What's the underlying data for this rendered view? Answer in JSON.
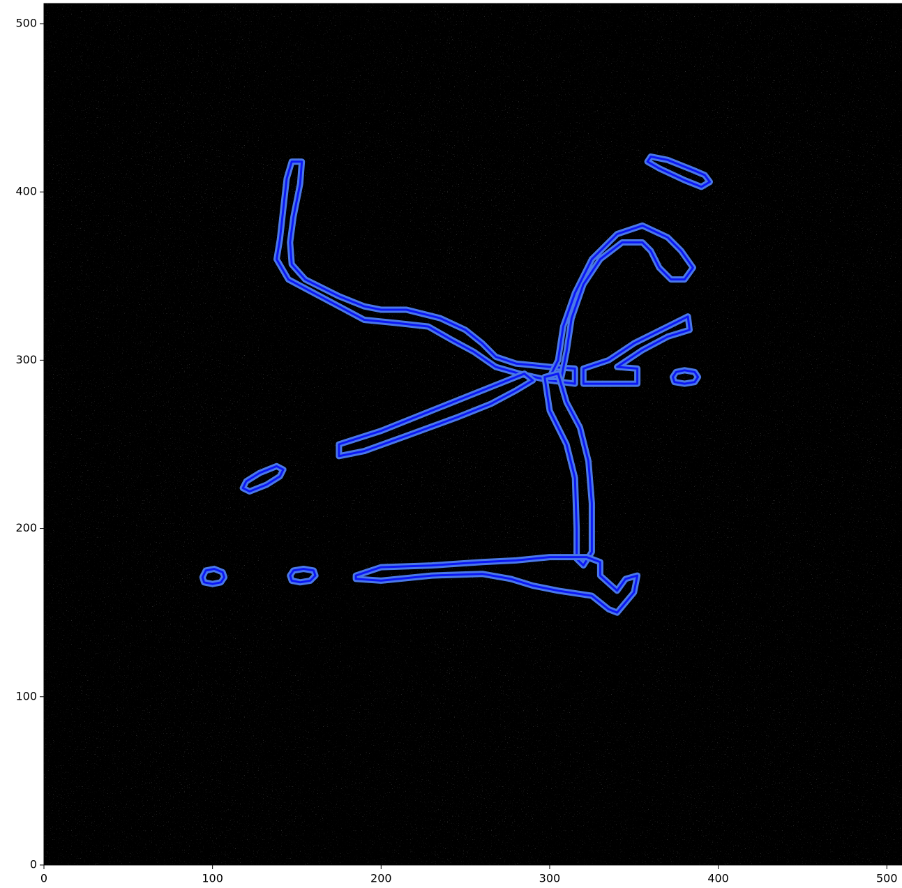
{
  "chart_data": {
    "type": "contour",
    "xlim": [
      0,
      509
    ],
    "ylim": [
      0,
      512
    ],
    "xticks": [
      0,
      100,
      200,
      300,
      400,
      500
    ],
    "yticks": [
      0,
      100,
      200,
      300,
      400,
      500
    ],
    "background": "#000000",
    "halo_color": "#4a78e8",
    "color": "#0b17f5",
    "contours": [
      {
        "x": [
          147,
          153,
          152,
          148,
          146,
          147,
          155,
          175,
          190,
          200,
          215,
          235,
          250,
          260,
          268,
          280,
          300,
          315,
          315,
          300,
          282,
          268,
          255,
          242,
          228,
          210,
          190,
          175,
          160,
          145,
          138,
          140,
          142,
          144
        ],
        "y": [
          418,
          418,
          405,
          385,
          370,
          357,
          348,
          338,
          332,
          330,
          330,
          325,
          318,
          310,
          302,
          298,
          296,
          295,
          286,
          288,
          292,
          296,
          305,
          312,
          320,
          322,
          324,
          332,
          340,
          348,
          360,
          372,
          390,
          408
        ]
      },
      {
        "x": [
          300,
          305,
          308,
          315,
          325,
          340,
          355,
          370,
          378,
          385,
          380,
          372,
          365,
          360,
          355,
          343,
          330,
          320,
          313,
          310,
          307
        ],
        "y": [
          290,
          300,
          320,
          340,
          360,
          375,
          380,
          373,
          365,
          355,
          348,
          348,
          355,
          365,
          370,
          370,
          360,
          345,
          325,
          305,
          290
        ]
      },
      {
        "x": [
          175,
          200,
          230,
          255,
          275,
          285,
          290,
          280,
          265,
          245,
          215,
          190,
          175
        ],
        "y": [
          250,
          258,
          270,
          280,
          288,
          292,
          288,
          282,
          274,
          266,
          255,
          246,
          243
        ]
      },
      {
        "x": [
          297,
          300,
          310,
          315,
          316,
          316,
          320,
          325,
          325,
          323,
          318,
          310,
          305
        ],
        "y": [
          290,
          270,
          250,
          230,
          200,
          182,
          178,
          186,
          215,
          240,
          260,
          275,
          292
        ]
      },
      {
        "x": [
          185,
          200,
          230,
          260,
          280,
          300,
          322,
          330,
          330,
          340,
          345,
          352,
          350,
          340,
          335,
          325,
          305,
          290,
          277,
          260,
          230,
          200,
          185
        ],
        "y": [
          172,
          177,
          178,
          180,
          181,
          183,
          183,
          180,
          172,
          163,
          170,
          172,
          162,
          150,
          152,
          160,
          163,
          166,
          170,
          173,
          172,
          169,
          170
        ]
      },
      {
        "x": [
          320,
          335,
          350,
          370,
          382,
          383,
          370,
          355,
          340,
          352,
          352,
          320
        ],
        "y": [
          295,
          300,
          310,
          320,
          326,
          318,
          314,
          306,
          296,
          295,
          286,
          286
        ]
      },
      {
        "x": [
          96,
          101,
          106,
          107,
          105,
          100,
          95,
          94
        ],
        "y": [
          175,
          176,
          174,
          171,
          168,
          167,
          168,
          171
        ]
      },
      {
        "x": [
          148,
          154,
          160,
          161,
          158,
          152,
          147,
          146
        ],
        "y": [
          175,
          176,
          175,
          172,
          169,
          168,
          169,
          172
        ]
      },
      {
        "x": [
          120,
          128,
          138,
          142,
          140,
          132,
          122,
          118
        ],
        "y": [
          228,
          233,
          237,
          235,
          231,
          226,
          222,
          224
        ]
      },
      {
        "x": [
          375,
          380,
          386,
          388,
          386,
          380,
          374,
          373
        ],
        "y": [
          293,
          294,
          293,
          290,
          287,
          286,
          287,
          290
        ]
      },
      {
        "x": [
          360,
          370,
          385,
          392,
          395,
          390,
          380,
          365,
          358
        ],
        "y": [
          421,
          419,
          413,
          410,
          406,
          403,
          407,
          414,
          418
        ]
      }
    ]
  }
}
